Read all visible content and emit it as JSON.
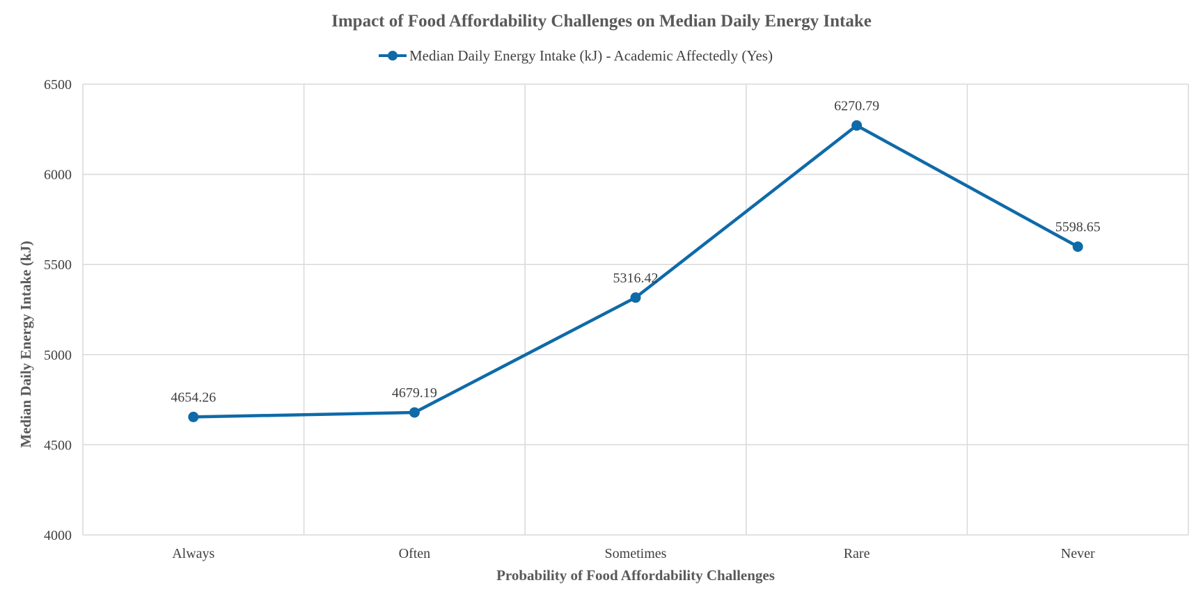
{
  "chart_data": {
    "type": "line",
    "title": "Impact of Food Affordability Challenges on Median Daily Energy Intake",
    "xlabel": "Probability of Food Affordability Challenges",
    "ylabel": "Median Daily Energy Intake (kJ)",
    "categories": [
      "Always",
      "Often",
      "Sometimes",
      "Rare",
      "Never"
    ],
    "series": [
      {
        "name": "Median Daily Energy Intake (kJ) - Academic Affectedly (Yes)",
        "values": [
          4654.26,
          4679.19,
          5316.42,
          6270.79,
          5598.65
        ],
        "data_labels": [
          "4654.26",
          "4679.19",
          "5316.42",
          "6270.79",
          "5598.65"
        ]
      }
    ],
    "ylim": [
      4000,
      6500
    ],
    "yticks": [
      "4000",
      "4500",
      "5000",
      "5500",
      "6000",
      "6500"
    ],
    "grid": "on",
    "legend": "top",
    "colors": {
      "series": "#0f6aa8",
      "grid": "#d9d9d9"
    }
  }
}
